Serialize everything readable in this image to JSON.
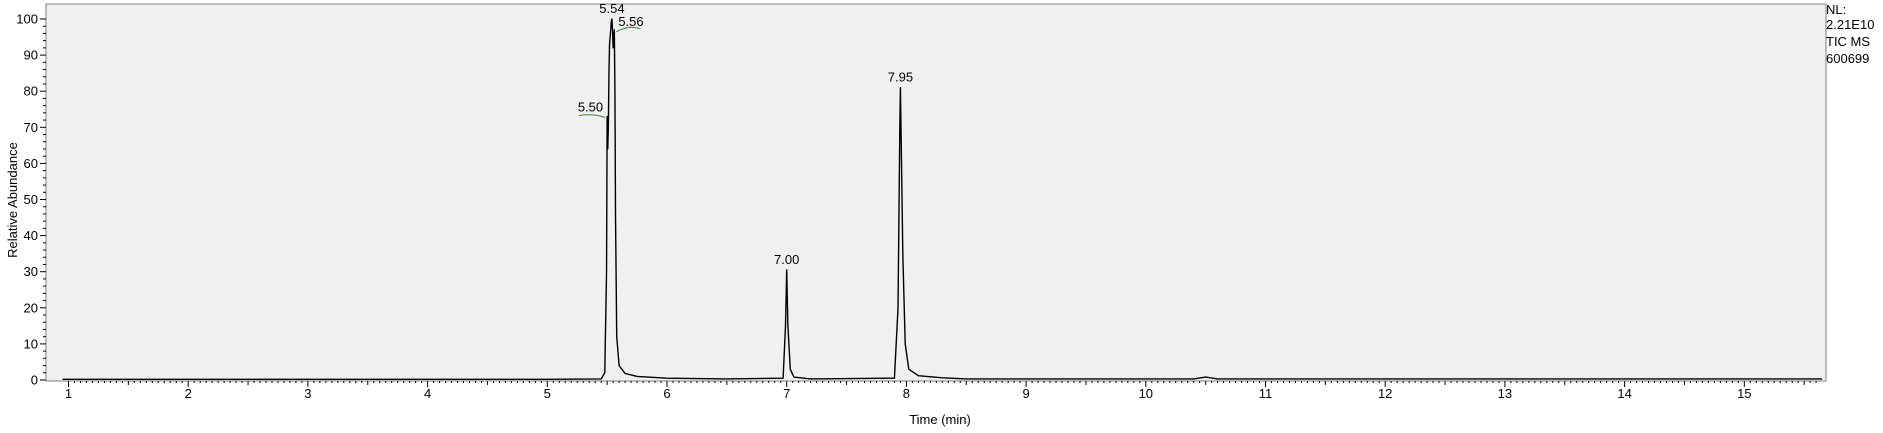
{
  "chart_data": {
    "type": "line",
    "xlabel": "Time (min)",
    "ylabel": "Relative Abundance",
    "xlim": [
      0.95,
      15.65
    ],
    "ylim": [
      0,
      100
    ],
    "x_ticks": [
      "1",
      "2",
      "3",
      "4",
      "5",
      "6",
      "7",
      "8",
      "9",
      "10",
      "11",
      "12",
      "13",
      "14",
      "15"
    ],
    "y_ticks": [
      "0",
      "10",
      "20",
      "30",
      "40",
      "50",
      "60",
      "70",
      "80",
      "90",
      "100"
    ],
    "grid": false,
    "info": [
      "NL:",
      "2.21E10",
      "TIC  MS",
      "600699"
    ],
    "colors": {
      "trace": "#000000",
      "plot_bg": "#f0f0f0",
      "marker": "#2e8b2e"
    },
    "series": [
      {
        "x": [
          0.95,
          5.0,
          5.45,
          5.48,
          5.495,
          5.5,
          5.505,
          5.51,
          5.515,
          5.52,
          5.53,
          5.535,
          5.54,
          5.545,
          5.55,
          5.56,
          5.565,
          5.57,
          5.58,
          5.6,
          5.65,
          5.75,
          6.0,
          6.5,
          6.97,
          6.99,
          7.0,
          7.01,
          7.03,
          7.06,
          7.2,
          7.9,
          7.93,
          7.945,
          7.95,
          7.955,
          7.97,
          7.99,
          8.02,
          8.1,
          8.3,
          8.5,
          10.4,
          10.5,
          10.6,
          15.65
        ],
        "y": [
          0.2,
          0.2,
          0.3,
          2,
          30,
          73,
          64,
          70,
          85,
          93,
          97,
          99.5,
          100,
          97,
          92,
          97,
          80,
          45,
          12,
          4,
          1.8,
          1,
          0.5,
          0.3,
          0.5,
          15,
          30.5,
          15,
          3,
          0.8,
          0.3,
          0.5,
          20,
          70,
          81,
          70,
          35,
          10,
          3,
          1.2,
          0.6,
          0.3,
          0.3,
          0.8,
          0.3,
          0.3
        ]
      }
    ],
    "annotations": [
      {
        "label": "5.54",
        "x": 5.54,
        "y": 100
      },
      {
        "label": "5.56",
        "x": 5.56,
        "y": 97
      },
      {
        "label": "5.50",
        "x": 5.5,
        "y": 73
      },
      {
        "label": "7.00",
        "x": 7.0,
        "y": 30.5
      },
      {
        "label": "7.95",
        "x": 7.95,
        "y": 81
      }
    ]
  }
}
